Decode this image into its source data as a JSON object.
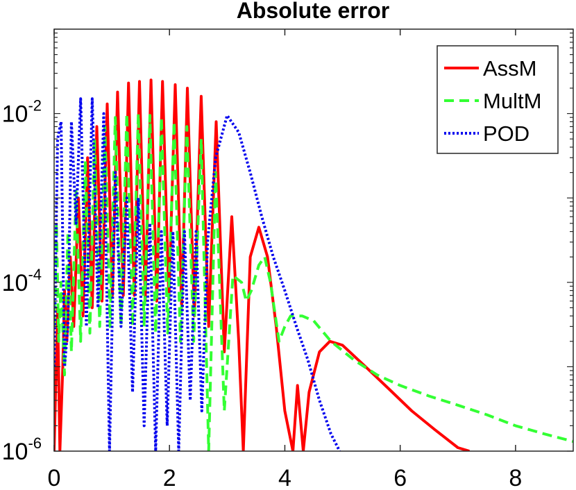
{
  "chart_data": {
    "type": "line",
    "title": "Absolute error",
    "xlabel": "",
    "ylabel": "",
    "xlim": [
      0,
      9
    ],
    "ylim": [
      1e-06,
      0.1
    ],
    "yscale": "log",
    "grid": false,
    "legend_position": "top-right",
    "x_ticks": [
      {
        "value": 0,
        "label": "0"
      },
      {
        "value": 2,
        "label": "2"
      },
      {
        "value": 4,
        "label": "4"
      },
      {
        "value": 6,
        "label": "6"
      },
      {
        "value": 8,
        "label": "8"
      }
    ],
    "y_ticks": [
      {
        "value": 1e-06,
        "base": "10",
        "exp": "-6"
      },
      {
        "value": 0.0001,
        "base": "10",
        "exp": "-4"
      },
      {
        "value": 0.01,
        "base": "10",
        "exp": "-2"
      }
    ],
    "series": [
      {
        "name": "AssM",
        "color": "#ff0000",
        "dash": "solid",
        "x": [
          0.0,
          0.06,
          0.1,
          0.15,
          0.18,
          0.22,
          0.28,
          0.34,
          0.42,
          0.5,
          0.58,
          0.66,
          0.74,
          0.83,
          0.92,
          1.01,
          1.1,
          1.2,
          1.29,
          1.39,
          1.48,
          1.58,
          1.68,
          1.78,
          1.88,
          1.99,
          2.1,
          2.21,
          2.31,
          2.43,
          2.55,
          2.68,
          2.81,
          2.95,
          3.08,
          3.2,
          3.28,
          3.4,
          3.55,
          3.7,
          3.85,
          4.0,
          4.14,
          4.22,
          4.32,
          4.42,
          4.6,
          4.78,
          5.0,
          5.4,
          5.8,
          6.2,
          6.6,
          7.0,
          7.2
        ],
        "y": [
          1e-06,
          5e-05,
          1e-06,
          1e-05,
          8e-05,
          2e-05,
          0.0002,
          3e-05,
          0.001,
          4e-05,
          0.003,
          5e-05,
          0.007,
          6e-05,
          0.013,
          7e-05,
          0.018,
          7e-05,
          0.023,
          7e-05,
          0.024,
          6e-05,
          0.025,
          6e-05,
          0.024,
          6e-05,
          0.022,
          5e-05,
          0.02,
          4e-05,
          0.016,
          3e-05,
          0.008,
          1.5e-05,
          0.0006,
          2e-05,
          1e-06,
          0.0002,
          0.00045,
          0.0002,
          3e-05,
          3e-06,
          1e-06,
          6e-06,
          1e-06,
          5e-06,
          1.5e-05,
          2e-05,
          1.8e-05,
          1e-05,
          5.5e-06,
          3e-06,
          1.8e-06,
          1.1e-06,
          1e-06
        ]
      },
      {
        "name": "MultM",
        "color": "#33ff33",
        "dash": "dashed",
        "x": [
          0.0,
          0.04,
          0.08,
          0.12,
          0.18,
          0.24,
          0.3,
          0.38,
          0.46,
          0.54,
          0.62,
          0.7,
          0.79,
          0.88,
          0.97,
          1.06,
          1.16,
          1.26,
          1.36,
          1.46,
          1.56,
          1.66,
          1.76,
          1.86,
          1.97,
          2.08,
          2.19,
          2.3,
          2.42,
          2.55,
          2.68,
          2.8,
          2.95,
          3.1,
          3.25,
          3.33,
          3.42,
          3.55,
          3.65,
          3.75,
          3.9,
          4.0,
          4.1,
          4.3,
          4.5,
          4.8,
          5.2,
          5.6,
          6.0,
          6.5,
          7.0,
          7.5,
          8.0,
          8.5,
          9.0
        ],
        "y": [
          3e-05,
          0.0005,
          2e-05,
          0.0001,
          8e-06,
          0.0004,
          1.5e-05,
          0.0012,
          2e-05,
          0.0028,
          2.5e-05,
          0.005,
          3e-05,
          0.007,
          3e-05,
          0.009,
          3e-05,
          0.01,
          3e-05,
          0.01,
          3e-05,
          0.0095,
          2.5e-05,
          0.009,
          2.5e-05,
          0.008,
          2e-05,
          0.007,
          2e-05,
          0.005,
          1e-06,
          0.002,
          3e-06,
          0.00012,
          0.0001,
          6e-05,
          8e-05,
          0.00016,
          0.0002,
          0.0001,
          2e-05,
          3e-05,
          4e-05,
          4e-05,
          3.5e-05,
          2e-05,
          1.2e-05,
          8e-06,
          6e-06,
          4.5e-06,
          3.5e-06,
          2.7e-06,
          2e-06,
          1.6e-06,
          1.3e-06
        ]
      },
      {
        "name": "POD",
        "color": "#0000ee",
        "dash": "dotted",
        "x": [
          0.0,
          0.06,
          0.12,
          0.18,
          0.24,
          0.3,
          0.38,
          0.46,
          0.56,
          0.66,
          0.76,
          0.86,
          0.96,
          1.06,
          1.16,
          1.26,
          1.36,
          1.46,
          1.56,
          1.66,
          1.76,
          1.86,
          1.96,
          2.06,
          2.16,
          2.26,
          2.36,
          2.46,
          2.56,
          2.66,
          2.8,
          3.0,
          3.2,
          3.4,
          3.6,
          3.8,
          4.0,
          4.2,
          4.4,
          4.6,
          4.8,
          4.95
        ],
        "y": [
          1e-05,
          0.005,
          0.008,
          1e-05,
          3e-05,
          0.008,
          0.0005,
          0.015,
          3e-05,
          0.015,
          5e-05,
          0.01,
          1e-06,
          0.002,
          3e-05,
          0.001,
          5e-06,
          0.001,
          2e-06,
          0.0005,
          1e-06,
          0.0004,
          2e-06,
          0.0004,
          1e-06,
          0.0004,
          4e-06,
          0.0004,
          3e-06,
          0.0003,
          0.003,
          0.0095,
          0.006,
          0.002,
          0.0006,
          0.0002,
          8e-05,
          3e-05,
          1.2e-05,
          4e-06,
          1.6e-06,
          1e-06
        ]
      }
    ]
  }
}
